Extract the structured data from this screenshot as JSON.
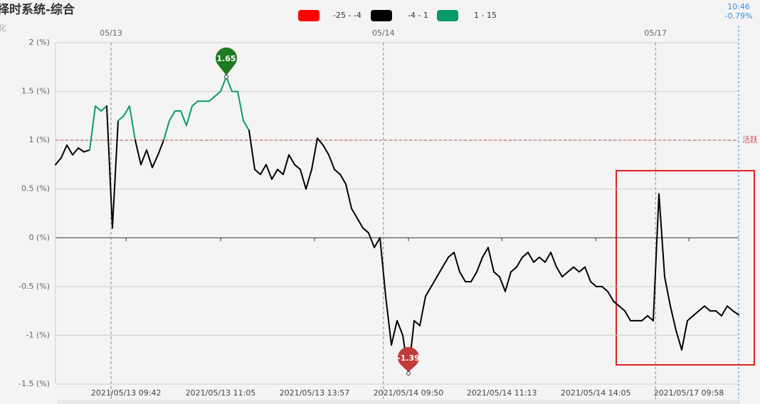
{
  "chart_data": {
    "type": "line",
    "title": "择时系统-综合",
    "y_axis_label": "化",
    "pieces": [
      {
        "name": "-25 - -4",
        "min": -25,
        "max": -4,
        "color": "#ff0000"
      },
      {
        "name": "-4 - 1",
        "min": -4,
        "max": 1,
        "color": "#000000"
      },
      {
        "name": "1 - 15",
        "min": 1,
        "max": 15,
        "color": "#0a9a6a"
      }
    ],
    "xlim": [
      0,
      120
    ],
    "ylim": [
      -1.5,
      2
    ],
    "yticks": [
      {
        "value": 2,
        "label": "2 (%)"
      },
      {
        "value": 1.5,
        "label": "1.5 (%)"
      },
      {
        "value": 1,
        "label": "1 (%)"
      },
      {
        "value": 0.5,
        "label": "0.5 (%)"
      },
      {
        "value": 0,
        "label": "0 (%)"
      },
      {
        "value": -0.5,
        "label": "-0.5 (%)"
      },
      {
        "value": -1,
        "label": "-1 (%)"
      },
      {
        "value": -1.5,
        "label": "-1.5 (%)"
      }
    ],
    "xticks": [
      {
        "value": 12.4,
        "label": "2021/05/13 09:42"
      },
      {
        "value": 29,
        "label": "2021/05/13 11:05"
      },
      {
        "value": 45.5,
        "label": "2021/05/13 13:57"
      },
      {
        "value": 62,
        "label": "2021/05/14 09:50"
      },
      {
        "value": 78.4,
        "label": "2021/05/14 11:13"
      },
      {
        "value": 94.9,
        "label": "2021/05/14 14:05"
      },
      {
        "value": 111.25,
        "label": "2021/05/17 09:58"
      }
    ],
    "day_ticks": [
      {
        "value": 9.75,
        "label": "05/13"
      },
      {
        "value": 57.6,
        "label": "05/14"
      },
      {
        "value": 105.4,
        "label": "05/17"
      }
    ],
    "threshold": {
      "value": 1,
      "label": "活跃",
      "color": "#d05050"
    },
    "last_point": {
      "x": 120,
      "time": "10:46",
      "value": -0.79,
      "label": "-0.79%",
      "color": "#3a8ee6"
    },
    "grid": true,
    "series": [
      {
        "name": "综合",
        "x": [
          0,
          1,
          2,
          3,
          4,
          5,
          6,
          7,
          8,
          9,
          10,
          11,
          12,
          13,
          14,
          15,
          16,
          17,
          18,
          19,
          20,
          21,
          22,
          23,
          24,
          25,
          26,
          27,
          28,
          29,
          30,
          31,
          32,
          33,
          34,
          35,
          36,
          37,
          38,
          39,
          40,
          41,
          42,
          43,
          44,
          45,
          46,
          47,
          48,
          49,
          50,
          51,
          52,
          53,
          54,
          55,
          56,
          57,
          58,
          59,
          60,
          61,
          62,
          63,
          64,
          65,
          66,
          67,
          68,
          69,
          70,
          71,
          72,
          73,
          74,
          75,
          76,
          77,
          78,
          79,
          80,
          81,
          82,
          83,
          84,
          85,
          86,
          87,
          88,
          89,
          90,
          91,
          92,
          93,
          94,
          95,
          96,
          97,
          98,
          99,
          100,
          101,
          102,
          103,
          104,
          105,
          106,
          107,
          108,
          109,
          110,
          111,
          112,
          113,
          114,
          115,
          116,
          117,
          118,
          119,
          120
        ],
        "values": [
          0.75,
          0.82,
          0.95,
          0.85,
          0.92,
          0.88,
          0.9,
          1.35,
          1.3,
          1.35,
          0.1,
          1.2,
          1.25,
          1.35,
          1.0,
          0.75,
          0.9,
          0.72,
          0.85,
          1.0,
          1.2,
          1.3,
          1.3,
          1.15,
          1.35,
          1.4,
          1.4,
          1.4,
          1.45,
          1.5,
          1.65,
          1.5,
          1.5,
          1.2,
          1.1,
          0.7,
          0.65,
          0.75,
          0.6,
          0.7,
          0.65,
          0.85,
          0.75,
          0.7,
          0.5,
          0.7,
          1.02,
          0.95,
          0.85,
          0.7,
          0.65,
          0.55,
          0.3,
          0.2,
          0.1,
          0.05,
          -0.1,
          0.0,
          -0.6,
          -1.1,
          -0.85,
          -1.0,
          -1.39,
          -0.85,
          -0.9,
          -0.6,
          -0.5,
          -0.4,
          -0.3,
          -0.2,
          -0.15,
          -0.35,
          -0.45,
          -0.45,
          -0.35,
          -0.2,
          -0.1,
          -0.35,
          -0.4,
          -0.55,
          -0.35,
          -0.3,
          -0.2,
          -0.15,
          -0.25,
          -0.2,
          -0.25,
          -0.15,
          -0.3,
          -0.4,
          -0.35,
          -0.3,
          -0.35,
          -0.3,
          -0.45,
          -0.5,
          -0.5,
          -0.55,
          -0.65,
          -0.7,
          -0.75,
          -0.85,
          -0.85,
          -0.85,
          -0.8,
          -0.85,
          0.45,
          -0.4,
          -0.7,
          -0.95,
          -1.15,
          -0.85,
          -0.8,
          -0.75,
          -0.7,
          -0.75,
          -0.75,
          -0.8,
          -0.7,
          -0.75,
          -0.79
        ]
      }
    ],
    "mark_points": [
      {
        "x": 30,
        "value": 1.65,
        "color": "#1f7a1f"
      },
      {
        "x": 62,
        "value": -1.39,
        "color": "#c03a3a"
      }
    ]
  }
}
